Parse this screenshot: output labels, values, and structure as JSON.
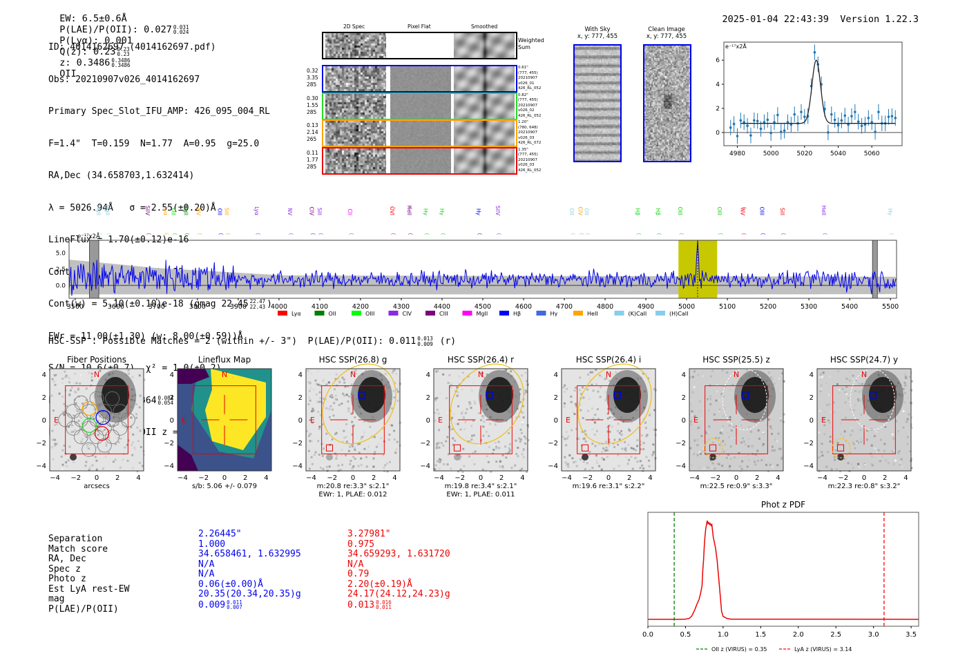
{
  "header": {
    "ew": "EW: 6.5±0.6Å",
    "plae_label": "P(LAE)/P(OII): 0.027",
    "plae_hi": "0.031",
    "plae_lo": "0.024",
    "plya": "P(Lyα): 0.001",
    "qz_label": "Q(z): 0.23",
    "qz_hi": "0.23",
    "qz_lo": "0.23",
    "z_label": "z: 0.3486",
    "z_hi": "0.3486",
    "z_lo": "0.3486",
    "z_line": "OII",
    "timestamp": "2025-01-04 22:43:39",
    "version": "Version 1.22.3"
  },
  "info": {
    "id": "ID: 4014162697 (4014162697.pdf)",
    "obs": "Obs: 20210907v026_4014162697",
    "primary": "Primary Spec_Slot_IFU_AMP: 426_095_004_RL",
    "params": "F=1.4\"  T=0.159  N=1.77  A=0.95  g=25.0",
    "radec": "RA,Dec (34.658703,1.632414)",
    "lambda": "λ = 5026.94Å   σ = 2.55(±0.20)Å",
    "lineflux": "LineFlux = 1.70(±0.12)e-16",
    "contn": "Cont(n) = 3.70(±0.35)e-18",
    "contw": "Cont(w) = 5.10(±0.10)e-18 (gmag 22.45",
    "contw_hi": "22.47",
    "contw_lo": "22.43",
    "contw_end": ")",
    "ewr": "EWr = 11.00(±1.30) (w: 8.00(±0.59))Å",
    "sn": "S/N = 10.6(±0.7)  χ² = 1.0(±0.2)",
    "plae": "P(LAE)/P(OII): 0.064",
    "plae_hi": "0.084",
    "plae_lo": "0.054",
    "plae_w": "(w: 0.036",
    "plae_w_hi": "0.04",
    "plae_w_lo": "0.033",
    "plae_w_end": ")",
    "z": "LyA z = 3.1351   OII z = 0.3485"
  },
  "spec2d": {
    "columns": [
      "2D Spec",
      "Pixel Flat",
      "Smoothed"
    ],
    "weighted_label": [
      "Weighted",
      "Sum"
    ],
    "rows": [
      {
        "color": "#0000ee",
        "left": [
          "0.32",
          "3.35",
          "285"
        ],
        "right": [
          "0.61\"",
          "(777, 455)",
          "20210907",
          "v026_01",
          "426_RL_052"
        ]
      },
      {
        "color": "#22dd22",
        "left": [
          "0.30",
          "1.55",
          "285"
        ],
        "right": [
          "0.82\"",
          "(777, 455)",
          "20210907",
          "v026_02",
          "426_RL_052"
        ]
      },
      {
        "color": "#ffa500",
        "left": [
          "0.13",
          "2.14",
          "265"
        ],
        "right": [
          "1.20\"",
          "(780, 648)",
          "20210907",
          "v026_03",
          "426_RL_072"
        ]
      },
      {
        "color": "#ee0000",
        "left": [
          "0.11",
          "1.77",
          "285"
        ],
        "right": [
          "1.35\"",
          "(777, 455)",
          "20210907",
          "v026_03",
          "426_RL_052"
        ]
      }
    ]
  },
  "cutouts": {
    "with_sky": {
      "title": "With Sky",
      "coords": "x, y: 777, 455"
    },
    "clean": {
      "title": "Clean Image",
      "coords": "x, y: 777, 455"
    }
  },
  "hsc": {
    "title": "HSC-SSP : Possible Matches = 2 (within +/- 3\")  P(LAE)/P(OII): 0.011",
    "plae_hi": "0.013",
    "plae_lo": "0.009",
    "band": "(r)",
    "panels": [
      {
        "title": "Fiber Positions",
        "caption1": "arcsecs",
        "caption2": ""
      },
      {
        "title": "Lineflux Map",
        "caption1": "s/b: 5.06 +/- 0.079",
        "caption2": ""
      },
      {
        "title": "HSC SSP(26.8) g",
        "caption1": "m:20.8  re:3.3\"  s:2.1\"",
        "caption2": "EWr: 1, PLAE: 0.012"
      },
      {
        "title": "HSC SSP(26.4) r",
        "caption1": "m:19.8  re:3.4\"  s:2.1\"",
        "caption2": "EWr: 1, PLAE: 0.011"
      },
      {
        "title": "HSC SSP(26.4) i",
        "caption1": "m:19.6  re:3.1\"  s:2.2\"",
        "caption2": ""
      },
      {
        "title": "HSC SSP(25.5) z",
        "caption1": "m:22.5  re:0.9\"  s:3.3\"",
        "caption2": ""
      },
      {
        "title": "HSC SSP(24.7) y",
        "caption1": "m:22.3  re:0.8\"  s:3.2\"",
        "caption2": ""
      }
    ],
    "axis_ticks": [
      "-4",
      "-2",
      "0",
      "2",
      "4"
    ],
    "north": "N",
    "east": "E"
  },
  "matches": {
    "labels": [
      "Separation",
      "Match score",
      "RA, Dec",
      "Spec z",
      "Photo z",
      "Est LyA rest-EW",
      "mag",
      "P(LAE)/P(OII)"
    ],
    "match1": {
      "color": "#0000ee",
      "values": [
        "2.26445\"",
        "1.000",
        "34.658461, 1.632995",
        "N/A",
        "N/A",
        "0.06(±0.00)Å",
        "20.35(20.34,20.35)g",
        "0.009"
      ],
      "plae_hi": "0.011",
      "plae_lo": "0.007"
    },
    "match2": {
      "color": "#ee0000",
      "values": [
        "3.27981\"",
        "0.975",
        "34.659293, 1.631720",
        "N/A",
        "0.79",
        "2.20(±0.19)Å",
        "24.17(24.12,24.23)g",
        "0.013"
      ],
      "plae_hi": "0.016",
      "plae_lo": "0.011"
    }
  },
  "chart_data": [
    {
      "type": "scatter",
      "name": "line-fit",
      "ylabel": "e⁻¹⁷x2Å",
      "xlim": [
        4972,
        5078
      ],
      "ylim": [
        -1.1,
        7.5
      ],
      "xticks": [
        4980,
        5000,
        5020,
        5040,
        5060
      ],
      "yticks": [
        0,
        2,
        4,
        6
      ],
      "x": [
        4976,
        4978,
        4980,
        4982,
        4984,
        4986,
        4988,
        4990,
        4992,
        4994,
        4996,
        4998,
        5000,
        5002,
        5004,
        5006,
        5008,
        5010,
        5012,
        5014,
        5016,
        5018,
        5020,
        5022,
        5024,
        5026,
        5028,
        5030,
        5032,
        5034,
        5036,
        5038,
        5040,
        5042,
        5044,
        5046,
        5048,
        5050,
        5052,
        5054,
        5056,
        5058,
        5060,
        5062,
        5064,
        5066,
        5068,
        5070,
        5072,
        5074
      ],
      "y": [
        0.4,
        0.7,
        -0.3,
        1.0,
        0.85,
        0.55,
        -0.25,
        1.0,
        0.95,
        0.3,
        0.85,
        1.05,
        -0.05,
        0.85,
        1.45,
        0.05,
        0.15,
        0.85,
        0.65,
        1.5,
        0.75,
        1.7,
        1.3,
        1.35,
        3.85,
        6.65,
        5.65,
        4.0,
        1.95,
        0.0,
        1.5,
        1.05,
        0.6,
        1.0,
        1.4,
        0.65,
        1.35,
        1.7,
        0.9,
        0.55,
        0.65,
        1.2,
        0.85,
        0.05,
        1.7,
        0.75,
        0.75,
        1.3,
        1.35,
        1.2
      ],
      "yerr": 0.65,
      "fit": {
        "center": 5026.94,
        "sigma": 2.55,
        "amplitude": 5.25,
        "continuum": 0.75,
        "xrange": [
          4982,
          5074
        ]
      }
    },
    {
      "type": "line",
      "name": "full-spectrum",
      "ylabel": "e⁻¹⁷x2Å",
      "xlim": [
        3485,
        5515
      ],
      "ylim": [
        -2.0,
        7.0
      ],
      "xticks": [
        3500,
        3600,
        3700,
        3800,
        3900,
        4000,
        4100,
        4200,
        4300,
        4400,
        4500,
        4600,
        4700,
        4800,
        4900,
        5000,
        5100,
        5200,
        5300,
        5400,
        5500
      ],
      "yticks": [
        0.0,
        2.5,
        5.0
      ],
      "highlight_band": [
        4980,
        5075
      ],
      "emission_line": 5026.94,
      "masked_bands": [
        [
          3535,
          3558
        ],
        [
          5456,
          5468
        ]
      ],
      "legend": [
        {
          "label": "Lyα",
          "color": "#ff0000"
        },
        {
          "label": "OII",
          "color": "#008000"
        },
        {
          "label": "OIII",
          "color": "#00ff00"
        },
        {
          "label": "CIV",
          "color": "#8a2be2"
        },
        {
          "label": "CIII",
          "color": "#800080"
        },
        {
          "label": "MgII",
          "color": "#ff00ff"
        },
        {
          "label": "Hβ",
          "color": "#0000ff"
        },
        {
          "label": "Hγ",
          "color": "#4169e1"
        },
        {
          "label": "HeII",
          "color": "#ffa500"
        },
        {
          "label": "(K)CaII",
          "color": "#87ceeb"
        },
        {
          "label": "(H)CaII",
          "color": "#87ceeb"
        }
      ],
      "line_labels": [
        {
          "label": "MgII",
          "wave": 3558,
          "color": "#87ceeb",
          "tier": 0
        },
        {
          "label": "MgII",
          "wave": 3580,
          "color": "#87ceeb",
          "tier": 0
        },
        {
          "label": "SiIV",
          "wave": 3678,
          "color": "#800080",
          "tier": 0
        },
        {
          "label": "Lyα",
          "wave": 3722,
          "color": "#ffa500",
          "tier": 0
        },
        {
          "label": "OII",
          "wave": 3742,
          "color": "#00dd00",
          "tier": 0
        },
        {
          "label": "MgII",
          "wave": 3772,
          "color": "#008000",
          "tier": 0
        },
        {
          "label": "NV",
          "wave": 3803,
          "color": "#ffa500",
          "tier": 0
        },
        {
          "label": "OII",
          "wave": 3772,
          "color": "#00dd00",
          "tier": 1
        },
        {
          "label": "OII",
          "wave": 3855,
          "color": "#0000ff",
          "tier": 0
        },
        {
          "label": "SiII",
          "wave": 3872,
          "color": "#ffa500",
          "tier": 0
        },
        {
          "label": "Lyα",
          "wave": 3946,
          "color": "#8a2be2",
          "tier": 0
        },
        {
          "label": "NV",
          "wave": 4027,
          "color": "#8a2be2",
          "tier": 0
        },
        {
          "label": "CIV",
          "wave": 4081,
          "color": "#800080",
          "tier": 0
        },
        {
          "label": "SiII",
          "wave": 4100,
          "color": "#8a2be2",
          "tier": 0
        },
        {
          "label": "CII",
          "wave": 4175,
          "color": "#ff00ff",
          "tier": 0
        },
        {
          "label": "OVI",
          "wave": 4278,
          "color": "#ff0000",
          "tier": 0
        },
        {
          "label": "SiIV",
          "wave": 4278,
          "color": "#ffa500",
          "tier": 1
        },
        {
          "label": "OII",
          "wave": 4319,
          "color": "#4169e1",
          "tier": 1
        },
        {
          "label": "HeII",
          "wave": 4320,
          "color": "#800080",
          "tier": 0
        },
        {
          "label": "Hγ",
          "wave": 4360,
          "color": "#00dd00",
          "tier": 0
        },
        {
          "label": "Hγ",
          "wave": 4400,
          "color": "#00dd00",
          "tier": 0
        },
        {
          "label": "Hγ",
          "wave": 4490,
          "color": "#0000ff",
          "tier": 0
        },
        {
          "label": "SiIV",
          "wave": 4537,
          "color": "#8a2be2",
          "tier": 0
        },
        {
          "label": "OII",
          "wave": 4719,
          "color": "#87ceeb",
          "tier": 0
        },
        {
          "label": "CIV",
          "wave": 4740,
          "color": "#ffa500",
          "tier": 0
        },
        {
          "label": "OII",
          "wave": 4755,
          "color": "#87ceeb",
          "tier": 0
        },
        {
          "label": "Hβ",
          "wave": 4880,
          "color": "#00dd00",
          "tier": 0
        },
        {
          "label": "Hβ",
          "wave": 4930,
          "color": "#00dd00",
          "tier": 0
        },
        {
          "label": "OIII",
          "wave": 4985,
          "color": "#00dd00",
          "tier": 0
        },
        {
          "label": "OIII",
          "wave": 5081,
          "color": "#00dd00",
          "tier": 0
        },
        {
          "label": "NV",
          "wave": 5138,
          "color": "#ff0000",
          "tier": 0
        },
        {
          "label": "OIII",
          "wave": 5138,
          "color": "#0000ff",
          "tier": 1
        },
        {
          "label": "OIII",
          "wave": 5185,
          "color": "#0000ff",
          "tier": 0
        },
        {
          "label": "SiII",
          "wave": 5235,
          "color": "#ff0000",
          "tier": 0
        },
        {
          "label": "HeII",
          "wave": 5337,
          "color": "#8a2be2",
          "tier": 0
        },
        {
          "label": "Hγ",
          "wave": 5500,
          "color": "#87ceeb",
          "tier": 0
        }
      ]
    },
    {
      "type": "line",
      "name": "phot-z-pdf",
      "title": "Phot z PDF",
      "xlim": [
        0.0,
        3.6
      ],
      "xticks": [
        "0.0",
        "0.5",
        "1.0",
        "1.5",
        "2.0",
        "2.5",
        "3.0",
        "3.5"
      ],
      "x": [
        0.0,
        0.45,
        0.5,
        0.55,
        0.58,
        0.62,
        0.65,
        0.68,
        0.7,
        0.72,
        0.73,
        0.74,
        0.75,
        0.76,
        0.77,
        0.78,
        0.79,
        0.8,
        0.81,
        0.82,
        0.83,
        0.84,
        0.85,
        0.86,
        0.87,
        0.9,
        0.92,
        0.95,
        0.98,
        1.0,
        1.05,
        1.1,
        3.6
      ],
      "y": [
        0.0,
        0.0,
        0.002,
        0.01,
        0.03,
        0.09,
        0.15,
        0.2,
        0.26,
        0.34,
        0.5,
        0.6,
        0.75,
        0.85,
        0.92,
        0.96,
        1.0,
        0.97,
        0.98,
        0.96,
        0.97,
        0.95,
        0.96,
        0.9,
        0.83,
        0.72,
        0.6,
        0.35,
        0.08,
        0.03,
        0.01,
        0.002,
        0.0
      ],
      "vlines": [
        {
          "label": "OII z (VIRUS) = 0.35",
          "x": 0.35,
          "color": "#008000"
        },
        {
          "label": "LyA z (VIRUS) = 3.14",
          "x": 3.14,
          "color": "#ff0000"
        }
      ]
    }
  ]
}
